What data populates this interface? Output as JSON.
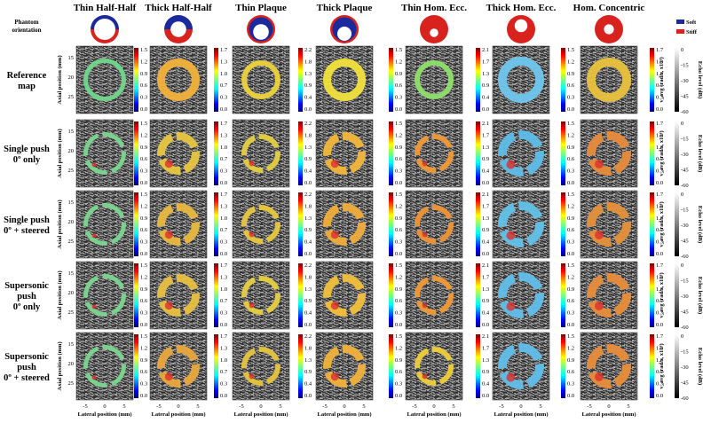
{
  "columns": [
    "Thin Half-Half",
    "Thick Half-Half",
    "Thin Plaque",
    "Thick Plaque",
    "Thin Hom. Ecc.",
    "Thick Hom. Ecc.",
    "Hom. Concentric"
  ],
  "phantom_orientation_label": [
    "Phantom",
    "orientation"
  ],
  "legend": {
    "soft": "Soft",
    "stiff": "Stiff",
    "soft_color": "#1a2a9c",
    "stiff_color": "#d8221e"
  },
  "rows": [
    [
      "Reference",
      "map"
    ],
    [
      "Single push",
      "0º only"
    ],
    [
      "Single push",
      "0º + steered"
    ],
    [
      "Supersonic",
      "push",
      "0º only"
    ],
    [
      "Supersonic",
      "push",
      "0º + steered"
    ]
  ],
  "y_axis_label": "Axial position (mm)",
  "y_ticks": [
    "15",
    "20",
    "25"
  ],
  "x_axis_label": "Lateral position (mm)",
  "x_ticks": [
    "-5",
    "0",
    "5"
  ],
  "colorbar_ticks": [
    [
      "1.5",
      "1.2",
      "0.9",
      "0.6",
      "0.3",
      "0.0"
    ],
    [
      "1.7",
      "1.3",
      "1.0",
      "0.7",
      "0.3",
      "0.0"
    ],
    [
      "2.2",
      "1.8",
      "1.3",
      "0.9",
      "0.4",
      "0.0"
    ],
    [
      "1.5",
      "1.2",
      "0.9",
      "0.6",
      "0.3",
      "0.0"
    ],
    [
      "2.1",
      "1.7",
      "1.3",
      "0.9",
      "0.4",
      "0.0"
    ],
    [
      "1.5",
      "1.2",
      "0.9",
      "0.6",
      "0.3",
      "0.0"
    ],
    [
      "1.7",
      "1.3",
      "1.0",
      "0.7",
      "0.3",
      "0.0"
    ]
  ],
  "colorbar_label": "v_avg (rad/s, x10³)",
  "echo_ticks": [
    "0",
    "-15",
    "-30",
    "-45",
    "-60"
  ],
  "echo_label": "Echo level (dB)",
  "ring_hues": [
    [
      "#6fd88a",
      "#f2b23a",
      "#ecd33a",
      "#f3e13a",
      "#8ee06a",
      "#6fc6ee",
      "#e9c23c"
    ],
    [
      "#7ad78f",
      "#e8c640",
      "#e4cf40",
      "#f2b63a",
      "#f29a36",
      "#5dbde9",
      "#e88b3a"
    ],
    [
      "#7ad78f",
      "#e9b83e",
      "#e8c83e",
      "#f0ad3a",
      "#f09335",
      "#62c2ea",
      "#e6903a"
    ],
    [
      "#7ad78f",
      "#e8c040",
      "#e6d040",
      "#f1c03b",
      "#f29a36",
      "#60bfea",
      "#e98d3a"
    ],
    [
      "#7ad78f",
      "#e9a83c",
      "#e6c43c",
      "#f1b23a",
      "#efcf3a",
      "#60bfea",
      "#e98d3a"
    ]
  ]
}
